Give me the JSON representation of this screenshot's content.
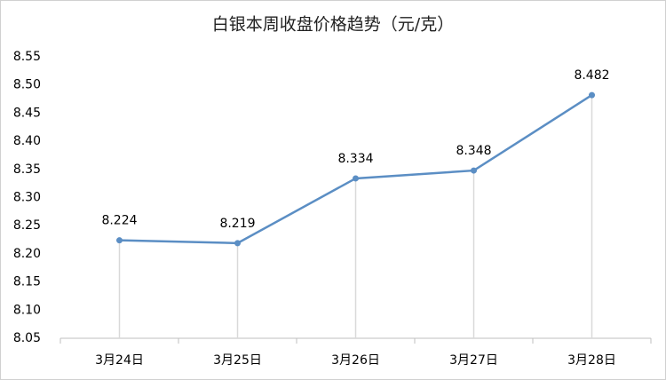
{
  "chart_data": {
    "type": "line",
    "title": "白银本周收盘价格趋势（元/克）",
    "categories": [
      "3月24日",
      "3月25日",
      "3月26日",
      "3月27日",
      "3月28日"
    ],
    "series": [
      {
        "name": "白银",
        "color": "#5b8ec4",
        "values": [
          8.224,
          8.219,
          8.334,
          8.348,
          8.482
        ]
      }
    ],
    "ylim": [
      8.05,
      8.55
    ],
    "yticks": [
      8.05,
      {
        "value": 8.1,
        "label": "8.10"
      },
      8.15,
      {
        "value": 8.2,
        "label": "8.20"
      },
      8.25,
      {
        "value": 8.3,
        "label": "8.30"
      },
      8.35,
      {
        "value": 8.4,
        "label": "8.40"
      },
      8.45,
      {
        "value": 8.5,
        "label": "8.50"
      },
      8.55
    ],
    "grid": false,
    "drop_lines": true
  }
}
